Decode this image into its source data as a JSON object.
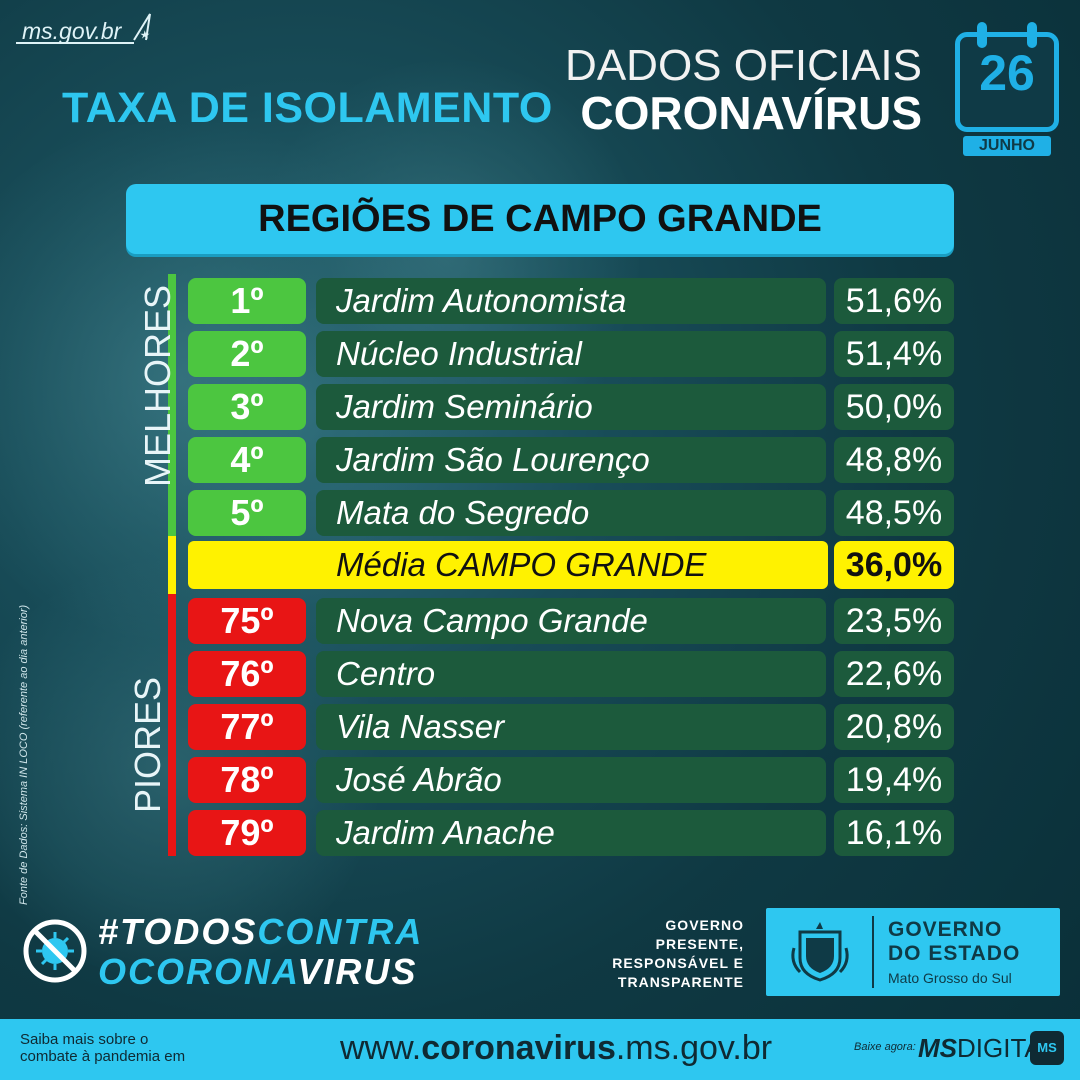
{
  "header": {
    "site": "ms.gov.br",
    "title": "TAXA DE ISOLAMENTO",
    "dados_line1": "DADOS OFICIAIS",
    "dados_line2": "CORONAVÍRUS",
    "calendar_day": "26",
    "calendar_month": "JUNHO"
  },
  "banner": "REGIÕES DE CAMPO GRANDE",
  "labels": {
    "best": "MELHORES",
    "worst": "PIORES",
    "source": "Fonte de Dados: Sistema IN LOCO (referente ao dia anterior)"
  },
  "best": [
    {
      "rank": "1º",
      "name": "Jardim Autonomista",
      "value": "51,6%"
    },
    {
      "rank": "2º",
      "name": "Núcleo Industrial",
      "value": "51,4%"
    },
    {
      "rank": "3º",
      "name": "Jardim Seminário",
      "value": "50,0%"
    },
    {
      "rank": "4º",
      "name": "Jardim São Lourenço",
      "value": "48,8%"
    },
    {
      "rank": "5º",
      "name": "Mata do Segredo",
      "value": "48,5%"
    }
  ],
  "average": {
    "name": "Média CAMPO GRANDE",
    "value": "36,0%"
  },
  "worst": [
    {
      "rank": "75º",
      "name": "Nova Campo Grande",
      "value": "23,5%"
    },
    {
      "rank": "76º",
      "name": "Centro",
      "value": "22,6%"
    },
    {
      "rank": "77º",
      "name": "Vila Nasser",
      "value": "20,8%"
    },
    {
      "rank": "78º",
      "name": "José Abrão",
      "value": "19,4%"
    },
    {
      "rank": "79º",
      "name": "Jardim Anache",
      "value": "16,1%"
    }
  ],
  "campaign": {
    "line1_a": "#TODOS",
    "line1_b": "CONTRA",
    "line2_a": "O",
    "line2_b": "CORONA",
    "line2_c": "VIRUS"
  },
  "government": {
    "slogan": [
      "GOVERNO",
      "PRESENTE,",
      "RESPONSÁVEL E",
      "TRANSPARENTE"
    ],
    "name_line1": "GOVERNO",
    "name_line2": "DO ESTADO",
    "state": "Mato Grosso do Sul"
  },
  "footer": {
    "info_line1": "Saiba mais sobre o",
    "info_line2": "combate à pandemia em",
    "url_prefix": "www.",
    "url_bold": "coronavirus",
    "url_suffix": ".ms.gov.br",
    "download_label": "Baixe agora:",
    "app_bold": "MS",
    "app_rest": "DIGITAL",
    "app_icon": "MS"
  },
  "colors": {
    "accent": "#2ec7f0",
    "best": "#4cc640",
    "worst": "#e81515",
    "average": "#fff200",
    "row": "#1c5a3c"
  }
}
